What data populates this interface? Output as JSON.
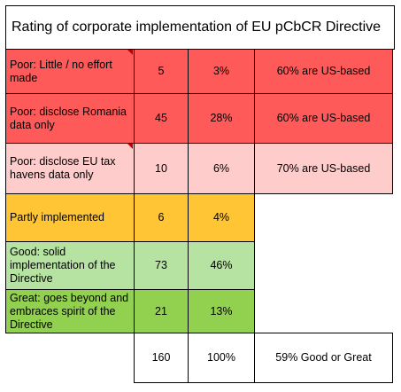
{
  "title": "Rating of corporate implementation of EU pCbCR Directive",
  "colors": {
    "poor_red": "#ff5a5a",
    "poor_pink": "#ffcccc",
    "partly_orange": "#ffc535",
    "good_light_green": "#b6e3a1",
    "great_green": "#92d050"
  },
  "rows": [
    {
      "label": "Poor: Little / no effort made",
      "count": "5",
      "percent": "3%",
      "note": "60% are US-based"
    },
    {
      "label": "Poor: disclose Romania data only",
      "count": "45",
      "percent": "28%",
      "note": "60% are US-based"
    },
    {
      "label": "Poor: disclose EU tax havens data only",
      "count": "10",
      "percent": "6%",
      "note": "70% are US-based"
    },
    {
      "label": "Partly implemented",
      "count": "6",
      "percent": "4%",
      "note": ""
    },
    {
      "label": "Good: solid implementation of the Directive",
      "count": "73",
      "percent": "46%",
      "note": ""
    },
    {
      "label": "Great: goes beyond and embraces spirit of the Directive",
      "count": "21",
      "percent": "13%",
      "note": ""
    }
  ],
  "total": {
    "count": "160",
    "percent": "100%",
    "note": "59% Good or Great"
  }
}
